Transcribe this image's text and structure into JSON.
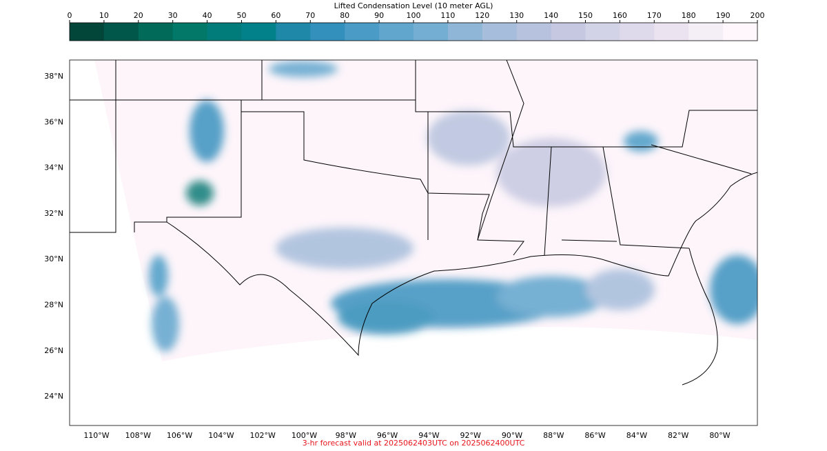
{
  "colorbar": {
    "title": "Lifted Condensation Level (10 meter AGL)",
    "ticks": [
      0,
      10,
      20,
      30,
      40,
      50,
      60,
      70,
      80,
      90,
      100,
      110,
      120,
      130,
      140,
      150,
      160,
      170,
      180,
      190,
      200
    ],
    "colors": [
      "#02463a",
      "#01574a",
      "#016a58",
      "#017868",
      "#027c7a",
      "#02818a",
      "#1f88a8",
      "#3390bd",
      "#4a9bc6",
      "#60a6cd",
      "#74aed2",
      "#8fb6d6",
      "#a6bddb",
      "#b7c3de",
      "#c6c8e1",
      "#d3d3e8",
      "#dfd9ec",
      "#ebe3f0",
      "#f4eef6",
      "#fff7fb"
    ]
  },
  "map": {
    "lat_labels": [
      "38°N",
      "36°N",
      "34°N",
      "32°N",
      "30°N",
      "28°N",
      "26°N",
      "24°N"
    ],
    "lon_labels": [
      "110°W",
      "108°W",
      "106°W",
      "104°W",
      "102°W",
      "100°W",
      "98°W",
      "96°W",
      "94°W",
      "92°W",
      "90°W",
      "88°W",
      "86°W",
      "84°W",
      "82°W",
      "80°W"
    ],
    "footer": "3-hr forecast valid at 2025062403UTC on 2025062400UTC"
  }
}
